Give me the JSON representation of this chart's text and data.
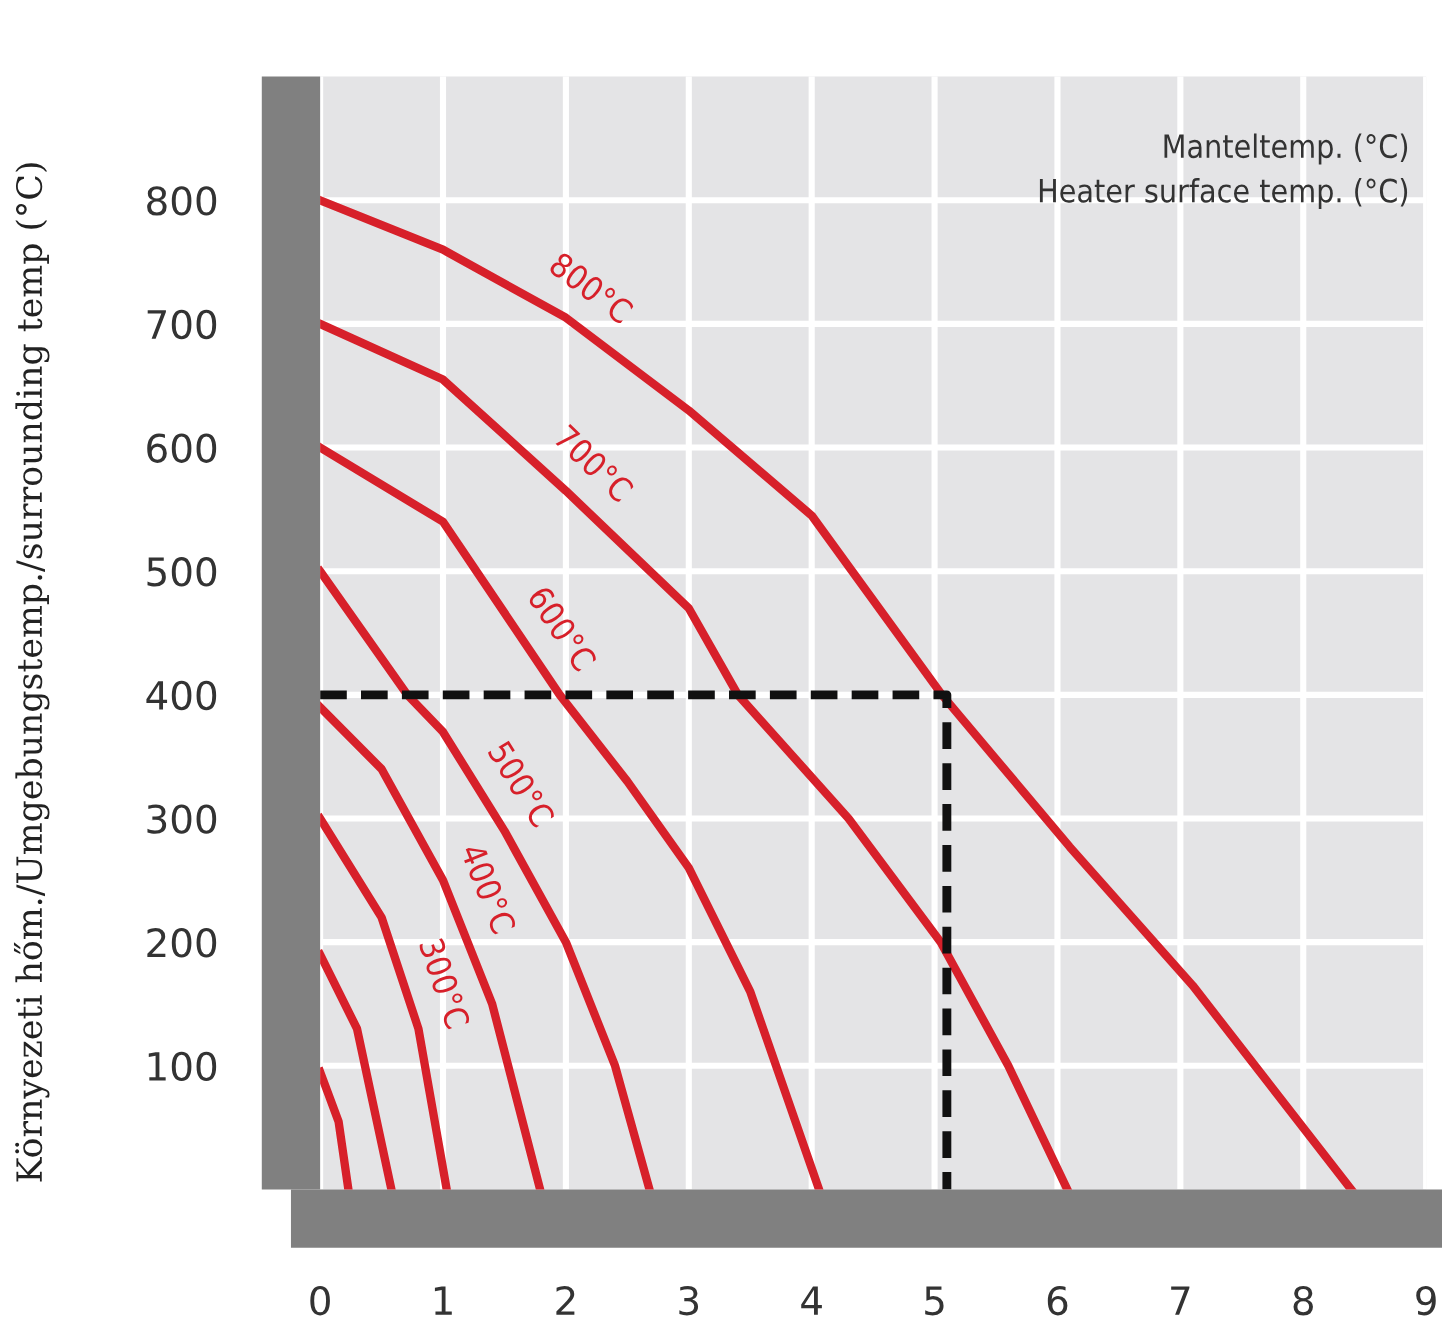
{
  "chart_data": {
    "type": "line",
    "ylabel": "Környezeti hőm./Umgebungstemp./surrounding temp (°C)",
    "annotations": [
      "Manteltemp. (°C)",
      "Heater surface temp. (°C)"
    ],
    "xlim": [
      0,
      9
    ],
    "ylim": [
      0,
      900
    ],
    "xticks": [
      0,
      1,
      2,
      3,
      4,
      5,
      6,
      7,
      8,
      9
    ],
    "yticks": [
      100,
      200,
      300,
      400,
      500,
      600,
      700,
      800
    ],
    "grid": true,
    "marker": "none",
    "line_style": "solid",
    "series": [
      {
        "name": "800°C",
        "color": "#d7202a",
        "x": [
          0,
          1,
          2,
          3,
          4,
          5.06,
          6.1,
          7.1,
          8.39
        ],
        "values": [
          800,
          760,
          705,
          630,
          545,
          400,
          277,
          165,
          0
        ]
      },
      {
        "name": "700°C",
        "color": "#d7202a",
        "x": [
          0,
          1,
          2,
          3,
          3.4,
          4.3,
          5.05,
          5.6,
          6.08
        ],
        "values": [
          700,
          655,
          565,
          470,
          400,
          300,
          200,
          100,
          0
        ]
      },
      {
        "name": "600°C",
        "color": "#d7202a",
        "x": [
          0,
          1,
          1.95,
          2.5,
          3,
          3.5,
          4.06
        ],
        "values": [
          600,
          540,
          400,
          330,
          260,
          160,
          0
        ]
      },
      {
        "name": "500°C",
        "color": "#d7202a",
        "x": [
          0,
          0.71,
          1,
          1.5,
          2,
          2.4,
          2.68
        ],
        "values": [
          500,
          400,
          370,
          290,
          200,
          100,
          0
        ]
      },
      {
        "name": "400°C",
        "color": "#d7202a",
        "x": [
          0,
          0.5,
          1,
          1.4,
          1.79
        ],
        "values": [
          390,
          340,
          250,
          150,
          0
        ]
      },
      {
        "name": "300°C",
        "color": "#d7202a",
        "x": [
          0,
          0.5,
          0.8,
          1.03
        ],
        "values": [
          300,
          220,
          130,
          0
        ]
      },
      {
        "color": "#d7202a",
        "x": [
          0,
          0.3,
          0.58
        ],
        "values": [
          190,
          130,
          0
        ]
      },
      {
        "color": "#d7202a",
        "x": [
          0,
          0.15,
          0.23
        ],
        "values": [
          95,
          55,
          0
        ]
      },
      {
        "color": "#111111",
        "line_style": "dashed",
        "x": [
          0,
          5.1,
          5.1
        ],
        "values": [
          400,
          400,
          0
        ]
      }
    ]
  }
}
